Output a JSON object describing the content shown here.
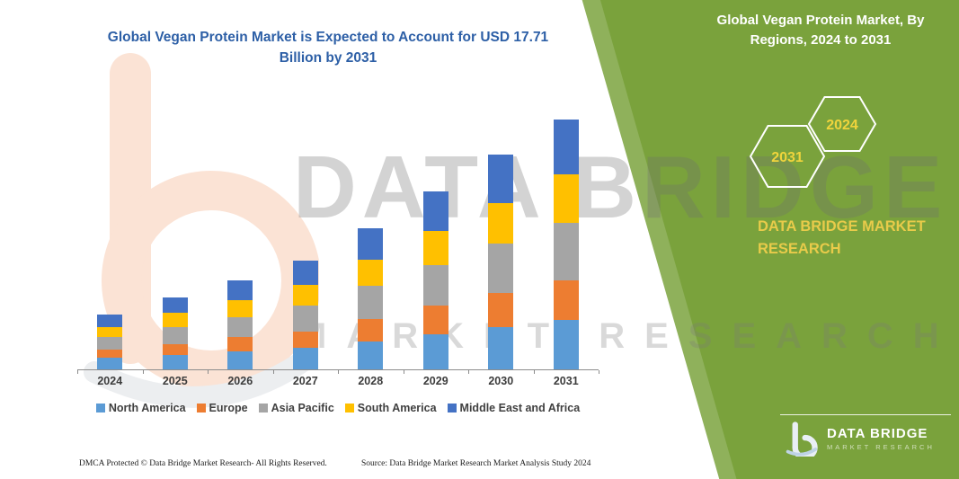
{
  "left": {
    "title": "Global Vegan Protein Market is Expected to Account for USD 17.71 Billion by 2031"
  },
  "chart_data": {
    "type": "bar",
    "stacked": true,
    "unit": "USD Billion",
    "title": "Global Vegan Protein Market is Expected to Account for USD 17.71 Billion by 2031",
    "categories": [
      "2024",
      "2025",
      "2026",
      "2027",
      "2028",
      "2029",
      "2030",
      "2031"
    ],
    "series": [
      {
        "name": "North America",
        "color": "#5B9BD5",
        "values": [
          0.8,
          1.0,
          1.3,
          1.5,
          2.0,
          2.5,
          3.0,
          3.5
        ]
      },
      {
        "name": "Europe",
        "color": "#ED7D31",
        "values": [
          0.6,
          0.8,
          1.0,
          1.2,
          1.6,
          2.0,
          2.4,
          2.8
        ]
      },
      {
        "name": "Asia Pacific",
        "color": "#A5A5A5",
        "values": [
          0.9,
          1.2,
          1.4,
          1.8,
          2.3,
          2.9,
          3.5,
          4.1
        ]
      },
      {
        "name": "South America",
        "color": "#FFC000",
        "values": [
          0.7,
          1.0,
          1.2,
          1.5,
          1.9,
          2.4,
          2.9,
          3.4
        ]
      },
      {
        "name": "Middle East and Africa",
        "color": "#4472C4",
        "values": [
          0.9,
          1.1,
          1.4,
          1.7,
          2.2,
          2.8,
          3.4,
          3.9
        ]
      }
    ],
    "totals_estimated": [
      3.9,
      5.1,
      6.3,
      7.7,
      10.0,
      12.6,
      15.2,
      17.7
    ],
    "annotation": "USD 17.71 Billion by 2031",
    "legend_position": "bottom",
    "gridlines": false,
    "y_axis_visible": false
  },
  "right": {
    "title": "Global Vegan Protein Market, By Regions, 2024 to 2031",
    "badge_back": "2031",
    "badge_front": "2024",
    "brand": "DATA BRIDGE MARKET RESEARCH",
    "logo_title": "DATA BRIDGE",
    "logo_subtitle": "MARKET RESEARCH"
  },
  "footer": {
    "dmca": "DMCA Protected © Data Bridge Market Research-  All Rights Reserved.",
    "source": "Source: Data Bridge Market Research  Market Analysis Study 2024"
  },
  "watermark": {
    "line1": "DATA BRIDGE",
    "line2": "MARKET RESEARCH"
  },
  "colors": {
    "panel_green": "#7AA23C",
    "accent_yellow": "#F0D43C",
    "title_blue": "#2D5FA6"
  }
}
